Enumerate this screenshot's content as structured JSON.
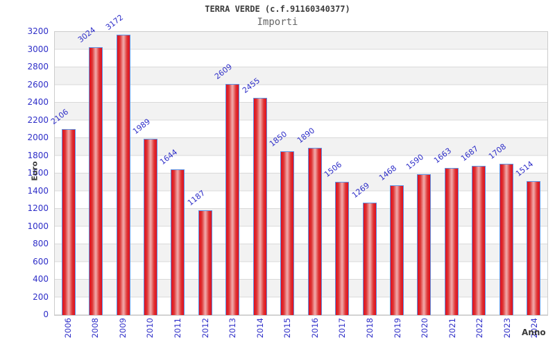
{
  "header": {
    "title": "TERRA VERDE (c.f.91160340377)",
    "subtitle": "Importi"
  },
  "chart_data": {
    "type": "bar",
    "title": "TERRA VERDE (c.f.91160340377)",
    "subtitle": "Importi",
    "xlabel": "Anno",
    "ylabel": "Euro",
    "categories": [
      "2006",
      "2008",
      "2009",
      "2010",
      "2011",
      "2012",
      "2013",
      "2014",
      "2015",
      "2016",
      "2017",
      "2018",
      "2019",
      "2020",
      "2021",
      "2022",
      "2023",
      "2024"
    ],
    "values": [
      2106,
      3024,
      3172,
      1989,
      1644,
      1187,
      2609,
      2455,
      1850,
      1890,
      1506,
      1269,
      1468,
      1590,
      1663,
      1687,
      1708,
      1514
    ],
    "ylim": [
      0,
      3200
    ],
    "ytick_step": 200,
    "grid": "alternating-horizontal-bands",
    "legend": "none",
    "colors": {
      "bar_edge": "#e20d1c",
      "bar_center": "#f0a3a3",
      "bar_border": "#5b93e5",
      "tick_label": "#2e2ec8",
      "band_gray": "#f2f2f2",
      "plot_border": "#cccccc",
      "title": "#3c3c3c",
      "subtitle": "#666666",
      "axis_title": "#3a3a3a"
    }
  }
}
